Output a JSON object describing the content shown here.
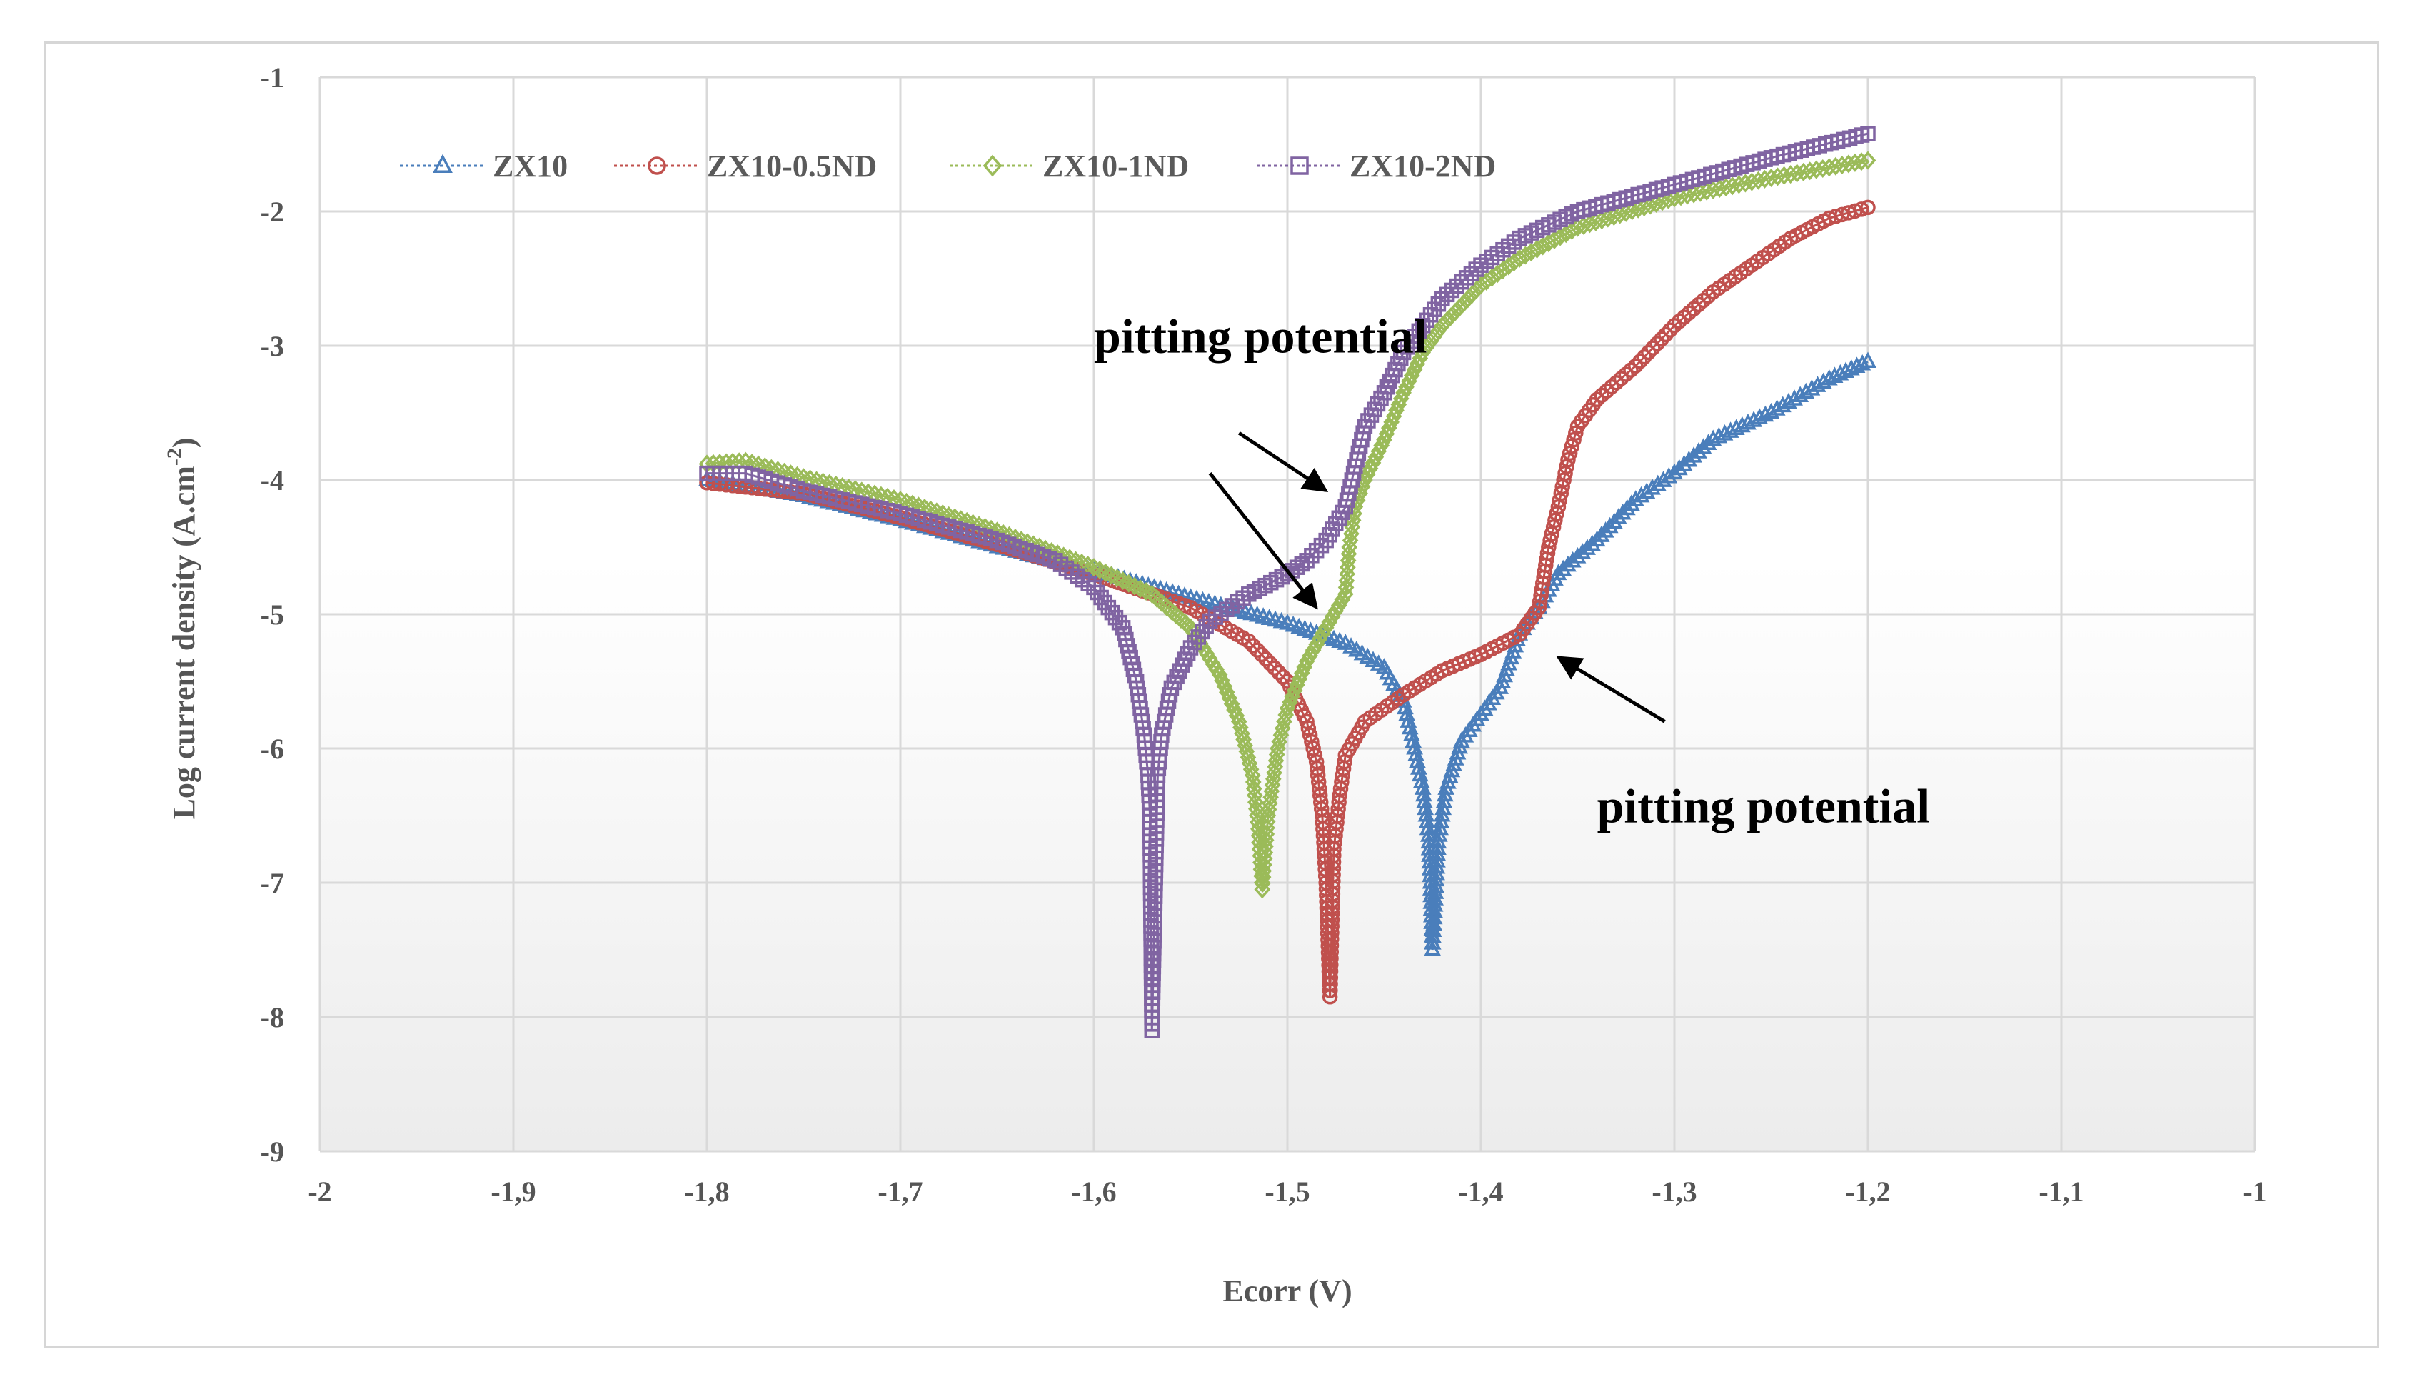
{
  "chart_data": {
    "type": "line",
    "title": "",
    "xlabel": "Ecorr (V)",
    "ylabel_main": "Log current density (A.cm",
    "ylabel_sup": "-2",
    "ylabel_end": ")",
    "xlim": [
      -2,
      -1
    ],
    "ylim": [
      -9,
      -1
    ],
    "xticks": [
      -2,
      -1.9,
      -1.8,
      -1.7,
      -1.6,
      -1.5,
      -1.4,
      -1.3,
      -1.2,
      -1.1,
      -1
    ],
    "xtick_labels": [
      "-2",
      "-1,9",
      "-1,8",
      "-1,7",
      "-1,6",
      "-1,5",
      "-1,4",
      "-1,3",
      "-1,2",
      "-1,1",
      "-1"
    ],
    "yticks": [
      -1,
      -2,
      -3,
      -4,
      -5,
      -6,
      -7,
      -8,
      -9
    ],
    "ytick_labels": [
      "-1",
      "-2",
      "-3",
      "-4",
      "-5",
      "-6",
      "-7",
      "-8",
      "-9"
    ],
    "grid": true,
    "legend_position": "top-left",
    "series": [
      {
        "name": "ZX10",
        "color": "#4a7ebb",
        "marker": "triangle",
        "points": [
          [
            -1.8,
            -4.0
          ],
          [
            -1.75,
            -4.12
          ],
          [
            -1.7,
            -4.3
          ],
          [
            -1.65,
            -4.5
          ],
          [
            -1.6,
            -4.68
          ],
          [
            -1.55,
            -4.88
          ],
          [
            -1.5,
            -5.07
          ],
          [
            -1.47,
            -5.22
          ],
          [
            -1.45,
            -5.4
          ],
          [
            -1.44,
            -5.65
          ],
          [
            -1.435,
            -5.95
          ],
          [
            -1.43,
            -6.3
          ],
          [
            -1.427,
            -6.65
          ],
          [
            -1.426,
            -7.0
          ],
          [
            -1.425,
            -7.5
          ],
          [
            -1.422,
            -6.7
          ],
          [
            -1.418,
            -6.3
          ],
          [
            -1.41,
            -5.95
          ],
          [
            -1.4,
            -5.75
          ],
          [
            -1.39,
            -5.55
          ],
          [
            -1.38,
            -5.15
          ],
          [
            -1.37,
            -4.95
          ],
          [
            -1.36,
            -4.7
          ],
          [
            -1.34,
            -4.45
          ],
          [
            -1.32,
            -4.15
          ],
          [
            -1.3,
            -3.95
          ],
          [
            -1.28,
            -3.7
          ],
          [
            -1.25,
            -3.5
          ],
          [
            -1.22,
            -3.25
          ],
          [
            -1.2,
            -3.12
          ]
        ]
      },
      {
        "name": "ZX10-0.5ND",
        "color": "#c0504d",
        "marker": "circle",
        "points": [
          [
            -1.8,
            -4.02
          ],
          [
            -1.75,
            -4.1
          ],
          [
            -1.7,
            -4.28
          ],
          [
            -1.65,
            -4.48
          ],
          [
            -1.6,
            -4.7
          ],
          [
            -1.55,
            -4.95
          ],
          [
            -1.52,
            -5.2
          ],
          [
            -1.5,
            -5.5
          ],
          [
            -1.49,
            -5.8
          ],
          [
            -1.485,
            -6.1
          ],
          [
            -1.482,
            -6.5
          ],
          [
            -1.48,
            -7.0
          ],
          [
            -1.478,
            -7.85
          ],
          [
            -1.476,
            -6.75
          ],
          [
            -1.473,
            -6.35
          ],
          [
            -1.47,
            -6.05
          ],
          [
            -1.46,
            -5.8
          ],
          [
            -1.44,
            -5.6
          ],
          [
            -1.42,
            -5.42
          ],
          [
            -1.4,
            -5.3
          ],
          [
            -1.38,
            -5.15
          ],
          [
            -1.37,
            -4.95
          ],
          [
            -1.365,
            -4.5
          ],
          [
            -1.36,
            -4.2
          ],
          [
            -1.355,
            -3.85
          ],
          [
            -1.35,
            -3.6
          ],
          [
            -1.34,
            -3.4
          ],
          [
            -1.32,
            -3.15
          ],
          [
            -1.3,
            -2.85
          ],
          [
            -1.28,
            -2.6
          ],
          [
            -1.26,
            -2.4
          ],
          [
            -1.24,
            -2.2
          ],
          [
            -1.22,
            -2.05
          ],
          [
            -1.2,
            -1.97
          ]
        ]
      },
      {
        "name": "ZX10-1ND",
        "color": "#9bbb59",
        "marker": "diamond",
        "points": [
          [
            -1.8,
            -3.88
          ],
          [
            -1.78,
            -3.86
          ],
          [
            -1.75,
            -3.98
          ],
          [
            -1.7,
            -4.15
          ],
          [
            -1.65,
            -4.38
          ],
          [
            -1.6,
            -4.65
          ],
          [
            -1.57,
            -4.85
          ],
          [
            -1.55,
            -5.1
          ],
          [
            -1.535,
            -5.45
          ],
          [
            -1.525,
            -5.8
          ],
          [
            -1.518,
            -6.2
          ],
          [
            -1.515,
            -6.6
          ],
          [
            -1.513,
            -7.05
          ],
          [
            -1.51,
            -6.5
          ],
          [
            -1.505,
            -6.0
          ],
          [
            -1.5,
            -5.7
          ],
          [
            -1.49,
            -5.35
          ],
          [
            -1.48,
            -5.1
          ],
          [
            -1.47,
            -4.85
          ],
          [
            -1.468,
            -4.5
          ],
          [
            -1.465,
            -4.2
          ],
          [
            -1.46,
            -4.0
          ],
          [
            -1.45,
            -3.7
          ],
          [
            -1.44,
            -3.35
          ],
          [
            -1.43,
            -3.05
          ],
          [
            -1.42,
            -2.85
          ],
          [
            -1.4,
            -2.55
          ],
          [
            -1.38,
            -2.35
          ],
          [
            -1.35,
            -2.12
          ],
          [
            -1.3,
            -1.9
          ],
          [
            -1.25,
            -1.75
          ],
          [
            -1.2,
            -1.62
          ]
        ]
      },
      {
        "name": "ZX10-2ND",
        "color": "#8064a2",
        "marker": "square",
        "points": [
          [
            -1.8,
            -3.95
          ],
          [
            -1.78,
            -3.95
          ],
          [
            -1.75,
            -4.08
          ],
          [
            -1.7,
            -4.25
          ],
          [
            -1.65,
            -4.45
          ],
          [
            -1.62,
            -4.6
          ],
          [
            -1.6,
            -4.8
          ],
          [
            -1.585,
            -5.1
          ],
          [
            -1.578,
            -5.5
          ],
          [
            -1.574,
            -5.9
          ],
          [
            -1.572,
            -6.2
          ],
          [
            -1.571,
            -6.5
          ],
          [
            -1.57,
            -8.1
          ],
          [
            -1.567,
            -6.2
          ],
          [
            -1.565,
            -5.9
          ],
          [
            -1.56,
            -5.55
          ],
          [
            -1.55,
            -5.25
          ],
          [
            -1.54,
            -5.05
          ],
          [
            -1.52,
            -4.85
          ],
          [
            -1.5,
            -4.7
          ],
          [
            -1.49,
            -4.6
          ],
          [
            -1.48,
            -4.45
          ],
          [
            -1.47,
            -4.2
          ],
          [
            -1.465,
            -3.9
          ],
          [
            -1.46,
            -3.6
          ],
          [
            -1.45,
            -3.35
          ],
          [
            -1.44,
            -3.05
          ],
          [
            -1.43,
            -2.85
          ],
          [
            -1.42,
            -2.65
          ],
          [
            -1.4,
            -2.4
          ],
          [
            -1.38,
            -2.2
          ],
          [
            -1.35,
            -2.0
          ],
          [
            -1.3,
            -1.8
          ],
          [
            -1.25,
            -1.6
          ],
          [
            -1.2,
            -1.42
          ]
        ]
      }
    ],
    "annotations": [
      {
        "label": "pitting potential",
        "x": -1.6,
        "y": -3.05,
        "arrows": [
          [
            -1.525,
            -3.65,
            -1.48,
            -4.08
          ],
          [
            -1.54,
            -3.95,
            -1.485,
            -4.95
          ]
        ]
      },
      {
        "label": "pitting potential",
        "x": -1.34,
        "y": -6.55,
        "arrows": [
          [
            -1.305,
            -5.8,
            -1.36,
            -5.32
          ]
        ]
      }
    ]
  }
}
